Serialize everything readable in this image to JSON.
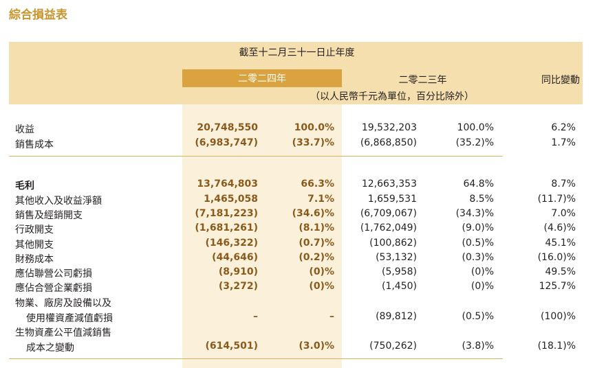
{
  "title": "綜合損益表",
  "header": {
    "period": "截至十二月三十一日止年度",
    "year_2024": "二零二四年",
    "year_2023": "二零二三年",
    "yoy": "同比變動",
    "unit": "（以人民幣千元為單位，百分比除外）"
  },
  "colors": {
    "title": "#c8962e",
    "header_band": "#f6dfae",
    "year_2024_badge": "#dba340",
    "col_2024_bg": "#fbf1da",
    "value_2024": "#8a5a1c"
  },
  "rows": [
    {
      "label": "收益",
      "v2024": "20,748,550",
      "p2024": "100.0%",
      "v2023": "19,532,203",
      "p2023": "100.0%",
      "yoy": "6.2%"
    },
    {
      "label": "銷售成本",
      "v2024": "(6,983,747)",
      "p2024": "(33.7)%",
      "v2023": "(6,868,850)",
      "p2023": "(35.2)%",
      "yoy": "1.7%"
    },
    {
      "label": "毛利",
      "v2024": "13,764,803",
      "p2024": "66.3%",
      "v2023": "12,663,353",
      "p2023": "64.8%",
      "yoy": "8.7%"
    },
    {
      "label": "其他收入及收益淨額",
      "v2024": "1,465,058",
      "p2024": "7.1%",
      "v2023": "1,659,531",
      "p2023": "8.5%",
      "yoy": "(11.7)%"
    },
    {
      "label": "銷售及經銷開支",
      "v2024": "(7,181,223)",
      "p2024": "(34.6)%",
      "v2023": "(6,709,067)",
      "p2023": "(34.3)%",
      "yoy": "7.0%"
    },
    {
      "label": "行政開支",
      "v2024": "(1,681,261)",
      "p2024": "(8.1)%",
      "v2023": "(1,762,049)",
      "p2023": "(9.0)%",
      "yoy": "(4.6)%"
    },
    {
      "label": "其他開支",
      "v2024": "(146,322)",
      "p2024": "(0.7)%",
      "v2023": "(100,862)",
      "p2023": "(0.5)%",
      "yoy": "45.1%"
    },
    {
      "label": "財務成本",
      "v2024": "(44,646)",
      "p2024": "(0.2)%",
      "v2023": "(53,132)",
      "p2023": "(0.3)%",
      "yoy": "(16.0)%"
    },
    {
      "label": "應佔聯營公司虧損",
      "v2024": "(8,910)",
      "p2024": "(0)%",
      "v2023": "(5,958)",
      "p2023": "(0)%",
      "yoy": "49.5%"
    },
    {
      "label": "應佔合營企業虧損",
      "v2024": "(3,272)",
      "p2024": "(0)%",
      "v2023": "(1,450)",
      "p2023": "(0)%",
      "yoy": "125.7%"
    },
    {
      "label": "物業、廠房及設備以及",
      "label2": "使用權資產減值虧損",
      "v2024": "–",
      "p2024": "–",
      "v2023": "(89,812)",
      "p2023": "(0.5)%",
      "yoy": "(100)%"
    },
    {
      "label": "生物資產公平值減銷售",
      "label2": "成本之變動",
      "v2024": "(614,501)",
      "p2024": "(3.0)%",
      "v2023": "(750,262)",
      "p2023": "(3.8)%",
      "yoy": "(18.1)%"
    }
  ]
}
